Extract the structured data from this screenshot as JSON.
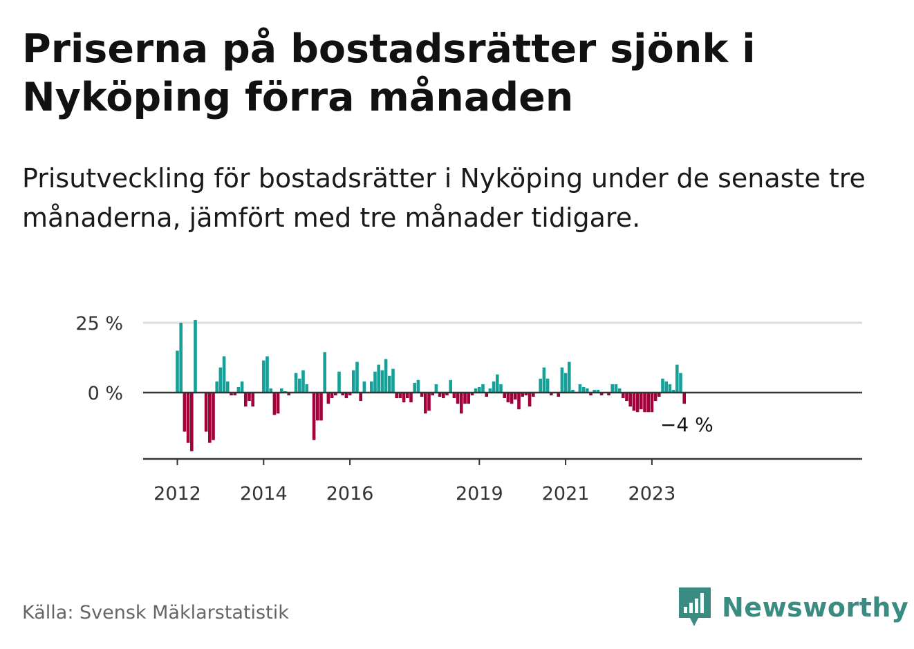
{
  "title": "Priserna på bostadsrätter sjönk i Nyköping förra månaden",
  "subtitle": "Prisutveckling för bostadsrätter i Nyköping under de senaste tre månaderna, jämfört med tre månader tidigare.",
  "source": "Källa: Svensk Mäklarstatistik",
  "brand": "Newsworthy",
  "colors": {
    "positive": "#17a097",
    "negative": "#a3003c",
    "grid": "#dddddd",
    "axis": "#333333",
    "brand": "#3a8c82"
  },
  "chart_data": {
    "type": "bar",
    "title": "Priserna på bostadsrätter sjönk i Nyköping förra månaden",
    "xlabel": "",
    "ylabel": "",
    "ylim": [
      -24,
      25
    ],
    "y_ticks": [
      {
        "value": 0,
        "label": "0 %"
      },
      {
        "value": 25,
        "label": "25 %"
      }
    ],
    "x_ticks": [
      {
        "index": 0,
        "label": "2012"
      },
      {
        "index": 24,
        "label": "2014"
      },
      {
        "index": 48,
        "label": "2016"
      },
      {
        "index": 84,
        "label": "2019"
      },
      {
        "index": 108,
        "label": "2021"
      },
      {
        "index": 132,
        "label": "2023"
      }
    ],
    "x_start": "2012-01",
    "last_label": "−4 %",
    "grid": true,
    "values": [
      15,
      25,
      -14,
      -18,
      -21,
      26,
      0,
      0,
      -14,
      -18,
      -17,
      4,
      9,
      13,
      4,
      -1,
      -1,
      2,
      4,
      -5,
      -3,
      -5,
      0,
      0,
      11.5,
      13,
      1.5,
      -8,
      -7.5,
      1.5,
      0.5,
      -1,
      0,
      7,
      5,
      8,
      3,
      0,
      -17,
      -10,
      -10,
      14.5,
      -4,
      -2,
      -1,
      7.5,
      -1,
      -2,
      -1,
      8,
      11,
      -3,
      4,
      0,
      4,
      7.5,
      10,
      8,
      12,
      6,
      8.5,
      -2,
      -2,
      -3.5,
      -2,
      -3.5,
      3.5,
      4.5,
      -1.5,
      -7.5,
      -6.5,
      -1,
      3,
      -1.5,
      -2,
      -1,
      4.5,
      -2,
      -4,
      -7.5,
      -4,
      -4,
      -1,
      1.5,
      2,
      3,
      -1.5,
      1.5,
      4,
      6.5,
      3,
      -2,
      -3.5,
      -4,
      -2.5,
      -6,
      -1.5,
      -1,
      -5,
      -1.5,
      0,
      5,
      9,
      5,
      -1,
      0,
      -1.5,
      9,
      7,
      11,
      1,
      0,
      3,
      2,
      1.5,
      -1,
      1,
      1,
      -1,
      0,
      -1,
      3,
      3,
      1.5,
      -2,
      -3,
      -5,
      -6.5,
      -7,
      -6,
      -7,
      -7,
      -7,
      -3,
      -1.5,
      5,
      4,
      3,
      1,
      10,
      7,
      -4
    ]
  }
}
